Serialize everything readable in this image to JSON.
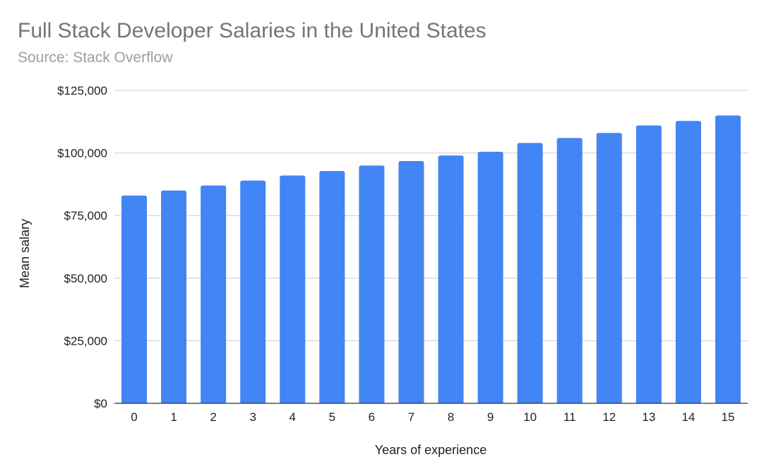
{
  "chart_data": {
    "type": "bar",
    "title": "Full Stack Developer Salaries in the United States",
    "subtitle": "Source: Stack Overflow",
    "xlabel": "Years of experience",
    "ylabel": "Mean salary",
    "categories": [
      "0",
      "1",
      "2",
      "3",
      "4",
      "5",
      "6",
      "7",
      "8",
      "9",
      "10",
      "11",
      "12",
      "13",
      "14",
      "15"
    ],
    "series": [
      {
        "values": [
          83000,
          85000,
          87000,
          89000,
          91000,
          92800,
          95000,
          96800,
          99000,
          100500,
          104000,
          106000,
          108000,
          111000,
          112800,
          115000
        ]
      }
    ],
    "ylim": [
      0,
      125000
    ],
    "yticks": [
      0,
      25000,
      50000,
      75000,
      100000,
      125000
    ],
    "ytick_labels": [
      "$0",
      "$25,000",
      "$50,000",
      "$75,000",
      "$100,000",
      "$125,000"
    ],
    "grid": true,
    "legend": "none",
    "colors": {
      "bar": "#4285f4",
      "grid": "#cccccc",
      "baseline": "#333333"
    }
  }
}
